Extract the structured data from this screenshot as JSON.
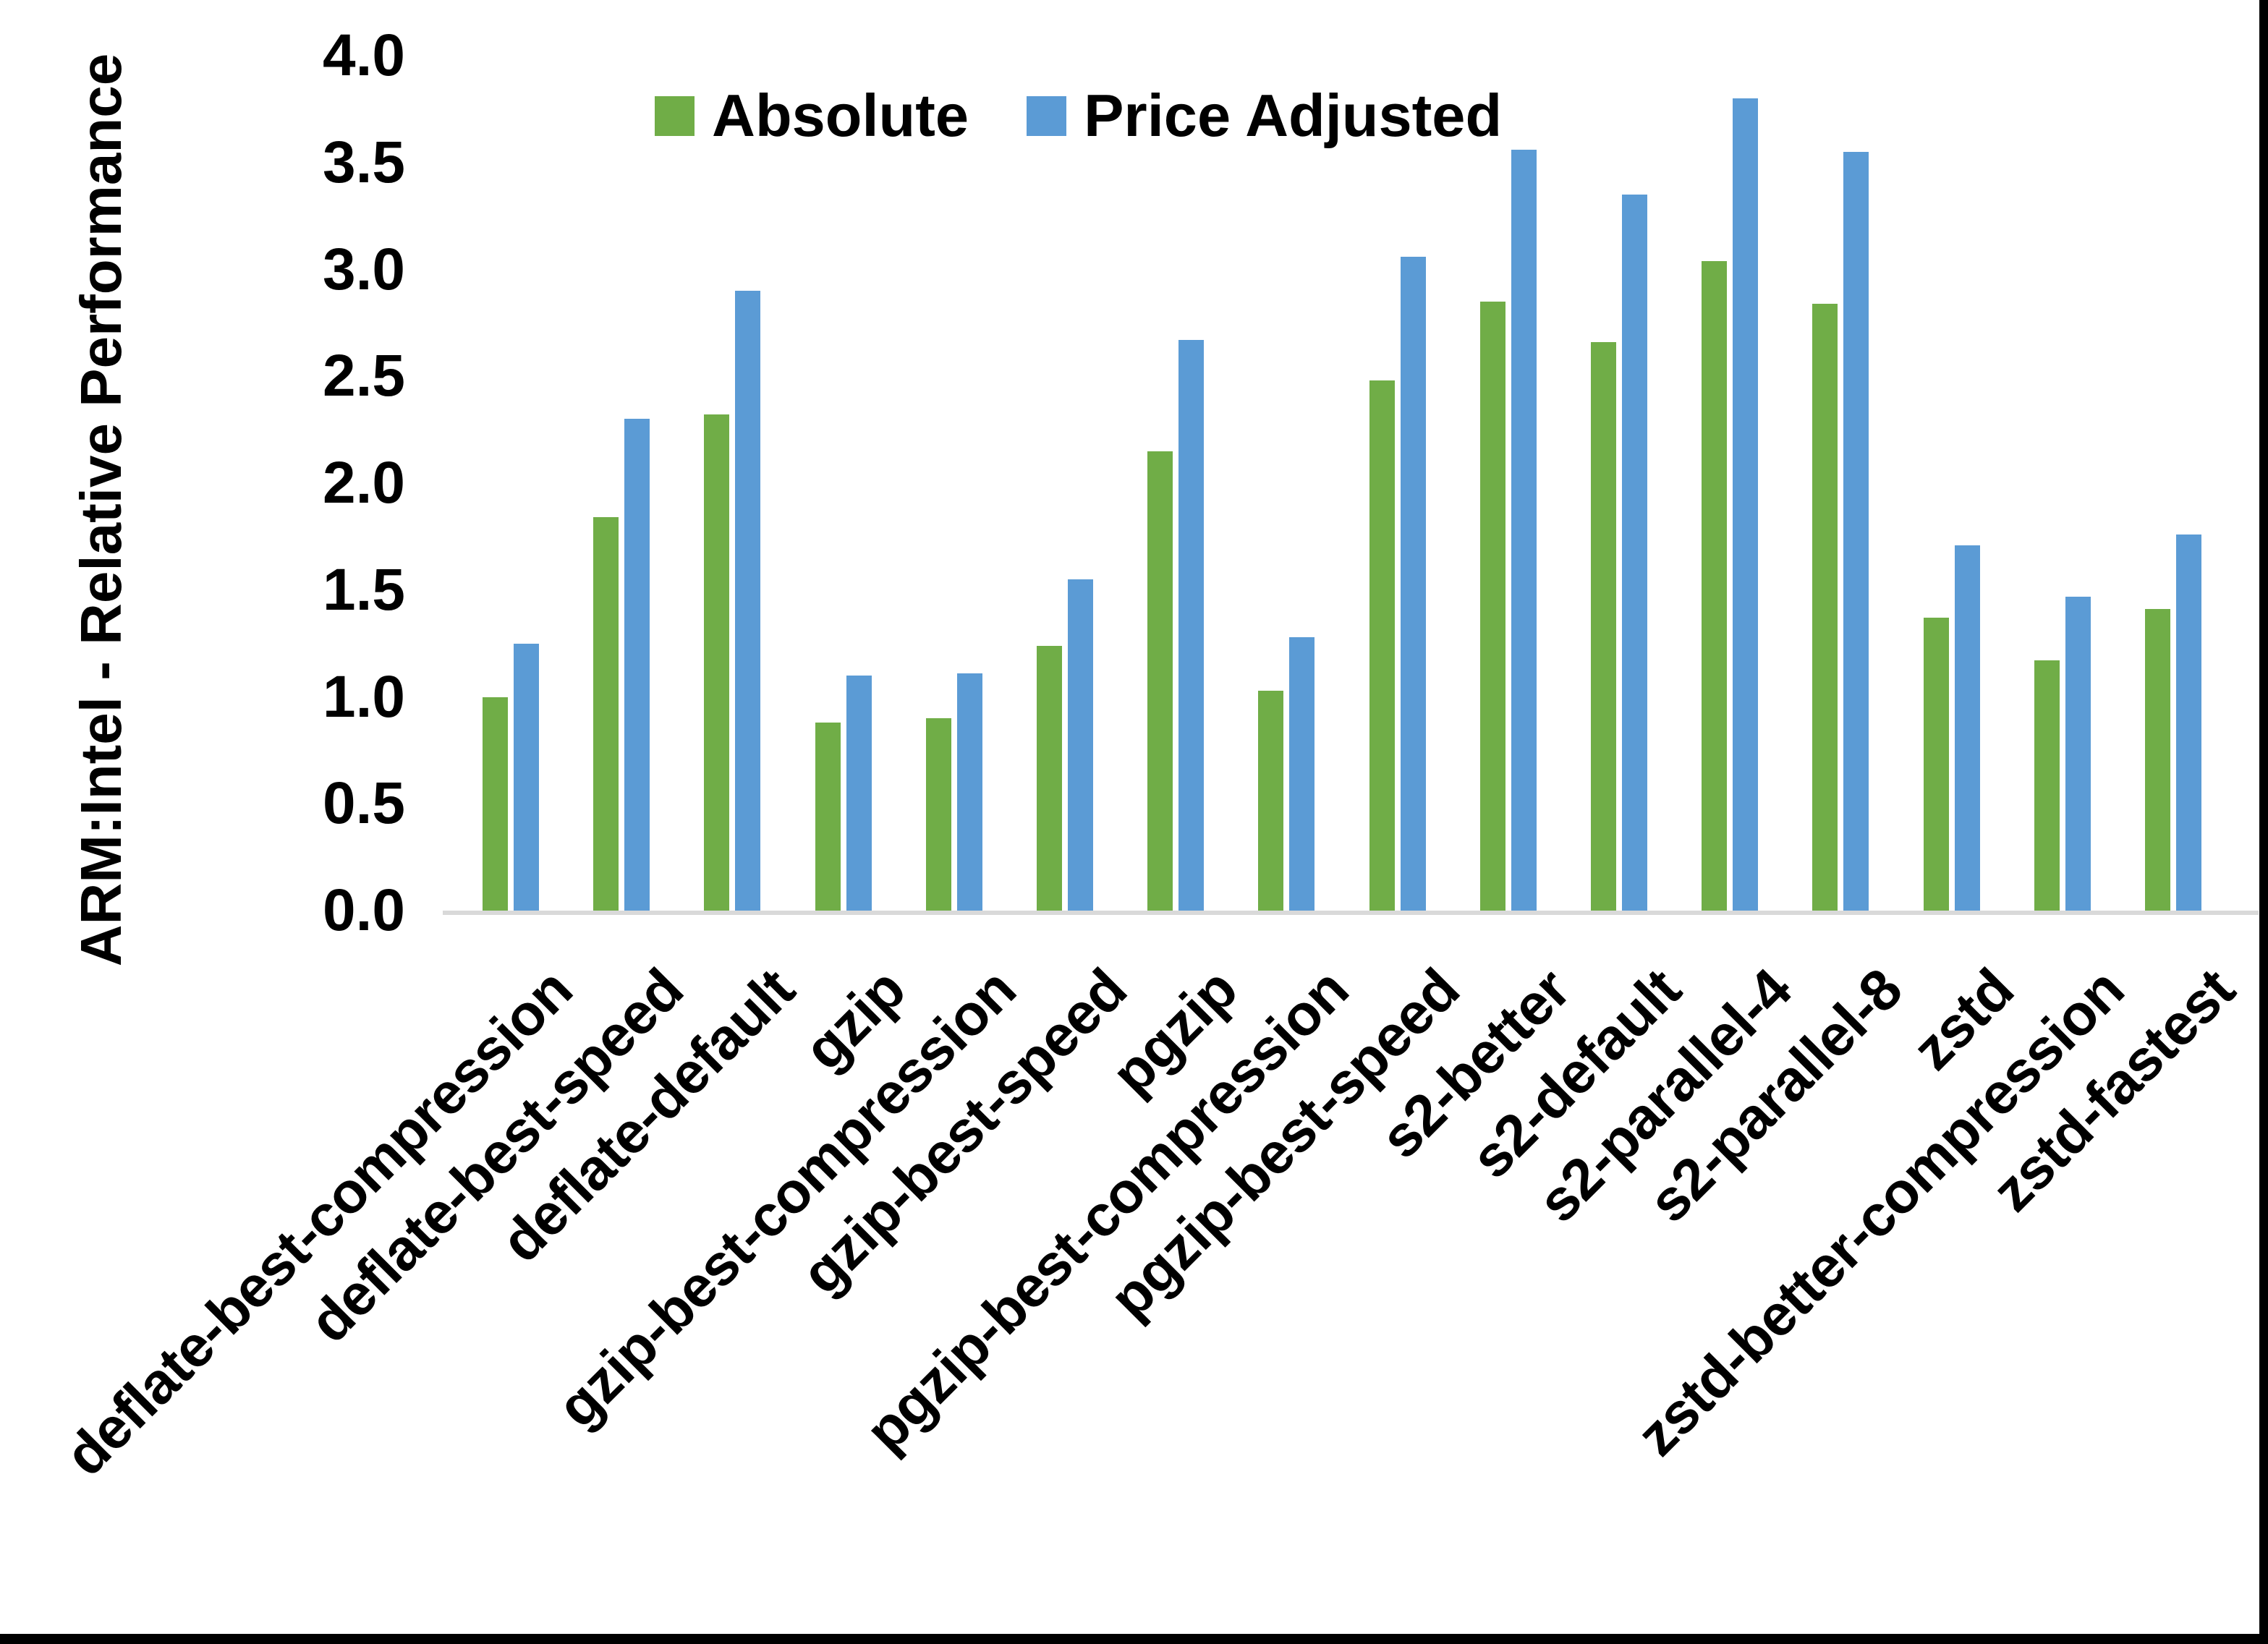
{
  "figure": {
    "background": "#FFFFFF",
    "border_color": "#000000"
  },
  "chart_data": {
    "type": "bar",
    "title": "",
    "xlabel": "",
    "ylabel": "ARM:Intel - Relative Performance",
    "ylim": [
      0.0,
      4.0
    ],
    "ytick_step": 0.5,
    "ytick_labels": [
      "0.0",
      "0.5",
      "1.0",
      "1.5",
      "2.0",
      "2.5",
      "3.0",
      "3.5",
      "4.0"
    ],
    "grid": false,
    "legend_position": "top-center",
    "axis_line_color": "#D9D9D9",
    "categories": [
      "deflate-best-compression",
      "deflate-best-speed",
      "deflate-default",
      "gzip",
      "gzip-best-compression",
      "gzip-best-speed",
      "pgzip",
      "pgzip-best-compression",
      "pgzip-best-speed",
      "s2-better",
      "s2-default",
      "s2-parallel-4",
      "s2-parallel-8",
      "zstd",
      "zstd-better-compression",
      "zstd-fastest"
    ],
    "series": [
      {
        "name": "Absolute",
        "color": "#70AD47",
        "values": [
          1.0,
          1.84,
          2.32,
          0.88,
          0.9,
          1.24,
          2.15,
          1.03,
          2.48,
          2.85,
          2.66,
          3.04,
          2.84,
          1.37,
          1.17,
          1.41
        ]
      },
      {
        "name": "Price Adjusted",
        "color": "#5B9BD5",
        "values": [
          1.25,
          2.3,
          2.9,
          1.1,
          1.11,
          1.55,
          2.67,
          1.28,
          3.06,
          3.56,
          3.35,
          3.8,
          3.55,
          1.71,
          1.47,
          1.76
        ]
      }
    ]
  }
}
